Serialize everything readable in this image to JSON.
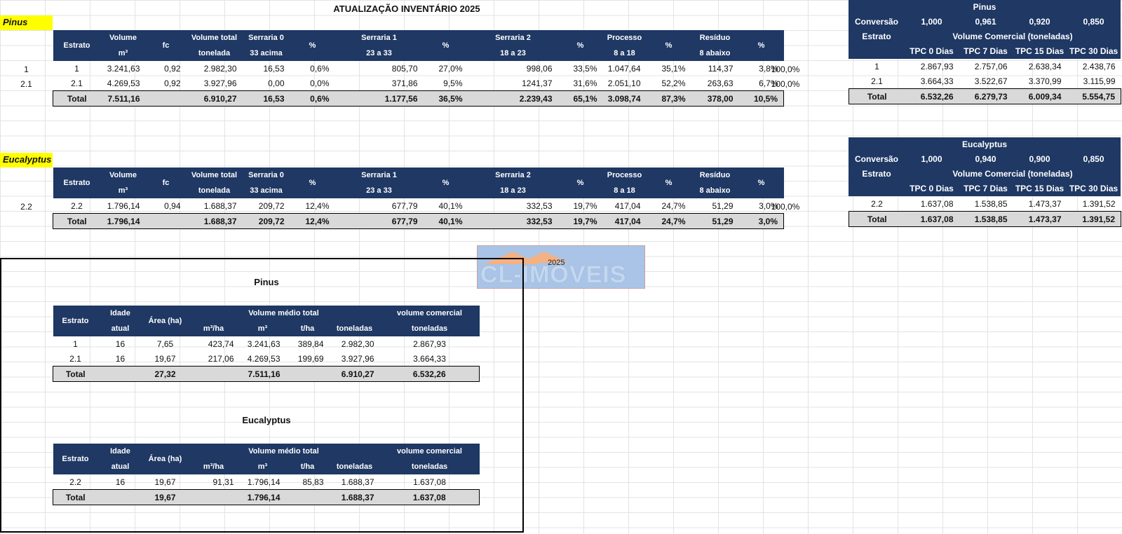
{
  "main_title": "ATUALIZAÇÃO INVENTÁRIO 2025",
  "pinus_tag": "Pinus",
  "eucalyptus_tag": "Eucalyptus",
  "top_headers": [
    [
      "Estrato",
      ""
    ],
    [
      "Volume",
      "m³"
    ],
    [
      "fc",
      ""
    ],
    [
      "Volume total",
      "tonelada"
    ],
    [
      "Serraria 0",
      "33 acima"
    ],
    [
      "%",
      ""
    ],
    [
      "Serraria 1",
      "23 a 33"
    ],
    [
      "%",
      ""
    ],
    [
      "Serraria 2",
      "18 a 23"
    ],
    [
      "%",
      ""
    ],
    [
      "Processo",
      "8 a 18"
    ],
    [
      "%",
      ""
    ],
    [
      "Resíduo",
      "8 abaixo"
    ],
    [
      "%",
      ""
    ]
  ],
  "pinus_rows": [
    {
      "label": "1",
      "cells": [
        "1",
        "3.241,63",
        "0,92",
        "2.982,30",
        "16,53",
        "0,6%",
        "805,70",
        "27,0%",
        "998,06",
        "33,5%",
        "1.047,64",
        "35,1%",
        "114,37",
        "3,8%"
      ],
      "pct": "100,0%"
    },
    {
      "label": "2.1",
      "cells": [
        "2.1",
        "4.269,53",
        "0,92",
        "3.927,96",
        "0,00",
        "0,0%",
        "371,86",
        "9,5%",
        "1241,37",
        "31,6%",
        "2.051,10",
        "52,2%",
        "263,63",
        "6,7%"
      ],
      "pct": "100,0%"
    }
  ],
  "pinus_total": [
    "Total",
    "7.511,16",
    "",
    "6.910,27",
    "16,53",
    "0,6%",
    "1.177,56",
    "36,5%",
    "2.239,43",
    "65,1%",
    "3.098,74",
    "87,3%",
    "378,00",
    "10,5%"
  ],
  "euc_rows": [
    {
      "label": "2.2",
      "cells": [
        "2.2",
        "1.796,14",
        "0,94",
        "1.688,37",
        "209,72",
        "12,4%",
        "677,79",
        "40,1%",
        "332,53",
        "19,7%",
        "417,04",
        "24,7%",
        "51,29",
        "3,0%"
      ],
      "pct": "100,0%"
    }
  ],
  "euc_total": [
    "Total",
    "1.796,14",
    "",
    "1.688,37",
    "209,72",
    "12,4%",
    "677,79",
    "40,1%",
    "332,53",
    "19,7%",
    "417,04",
    "24,7%",
    "51,29",
    "3,0%"
  ],
  "side_pinus": {
    "title": "Pinus",
    "conv_label": "Conversão",
    "conv_values": [
      "1,000",
      "0,961",
      "0,920",
      "0,850"
    ],
    "estrato": "Estrato",
    "vol_com": "Volume Comercial (toneladas)",
    "tpc": [
      "TPC 0 Dias",
      "TPC 7 Dias",
      "TPC 15 Dias",
      "TPC 30 Dias"
    ],
    "rows": [
      [
        "1",
        "2.867,93",
        "2.757,06",
        "2.638,34",
        "2.438,76"
      ],
      [
        "2.1",
        "3.664,33",
        "3.522,67",
        "3.370,99",
        "3.115,99"
      ]
    ],
    "total": [
      "Total",
      "6.532,26",
      "6.279,73",
      "6.009,34",
      "5.554,75"
    ]
  },
  "side_euc": {
    "title": "Eucalyptus",
    "conv_label": "Conversão",
    "conv_values": [
      "1,000",
      "0,940",
      "0,900",
      "0,850"
    ],
    "estrato": "Estrato",
    "vol_com": "Volume Comercial (toneladas)",
    "tpc": [
      "TPC 0 Dias",
      "TPC 7 Dias",
      "TPC 15 Dias",
      "TPC 30 Dias"
    ],
    "rows": [
      [
        "2.2",
        "1.637,08",
        "1.538,85",
        "1.473,37",
        "1.391,52"
      ]
    ],
    "total": [
      "Total",
      "1.637,08",
      "1.538,85",
      "1.473,37",
      "1.391,52"
    ]
  },
  "logo": {
    "text": "CL-IMÓVEIS",
    "year": "2025"
  },
  "summary_headers": {
    "estrato": "Estrato",
    "idade1": "Idade",
    "idade2": "atual",
    "area": "Área (ha)",
    "vol_medio": "Volume médio total",
    "vol_comercial": "volume comercial",
    "m3ha": "m³/ha",
    "m3": "m³",
    "tha": "t/ha",
    "toneladas": "toneladas",
    "toneladas2": "toneladas"
  },
  "summary_pinus": {
    "title": "Pinus",
    "rows": [
      [
        "1",
        "16",
        "7,65",
        "423,74",
        "3.241,63",
        "389,84",
        "2.982,30",
        "2.867,93"
      ],
      [
        "2.1",
        "16",
        "19,67",
        "217,06",
        "4.269,53",
        "199,69",
        "3.927,96",
        "3.664,33"
      ]
    ],
    "total": [
      "Total",
      "",
      "27,32",
      "",
      "7.511,16",
      "",
      "6.910,27",
      "6.532,26"
    ]
  },
  "summary_euc": {
    "title": "Eucalyptus",
    "rows": [
      [
        "2.2",
        "16",
        "19,67",
        "91,31",
        "1.796,14",
        "85,83",
        "1.688,37",
        "1.637,08"
      ]
    ],
    "total": [
      "Total",
      "",
      "19,67",
      "",
      "1.796,14",
      "",
      "1.688,37",
      "1.637,08"
    ]
  }
}
